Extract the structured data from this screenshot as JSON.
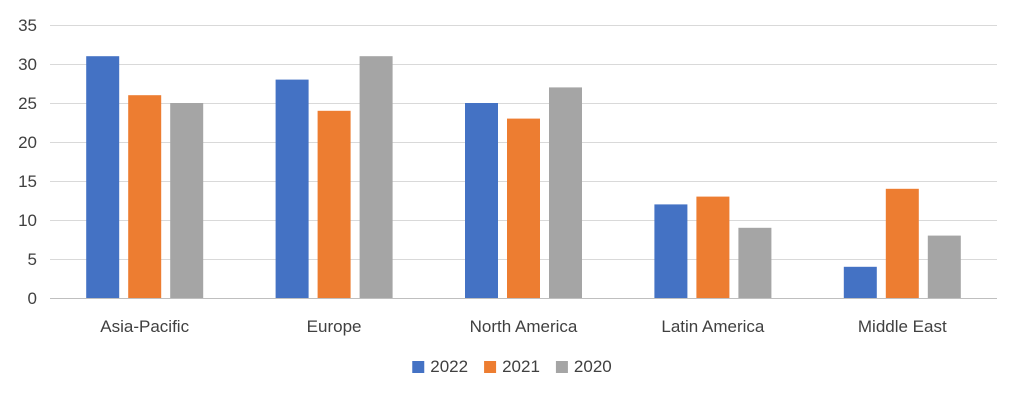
{
  "chart_data": {
    "type": "bar",
    "categories": [
      "Asia-Pacific",
      "Europe",
      "North America",
      "Latin America",
      "Middle East"
    ],
    "series": [
      {
        "name": "2022",
        "color": "#4472C4",
        "values": [
          31,
          28,
          25,
          12,
          4
        ]
      },
      {
        "name": "2021",
        "color": "#ED7D31",
        "values": [
          26,
          24,
          23,
          13,
          14
        ]
      },
      {
        "name": "2020",
        "color": "#A5A5A5",
        "values": [
          25,
          31,
          27,
          9,
          8
        ]
      }
    ],
    "title": "",
    "xlabel": "",
    "ylabel": "",
    "ylim": [
      0,
      35
    ],
    "yticks": [
      0,
      5,
      10,
      15,
      20,
      25,
      30,
      35
    ],
    "grid": true,
    "legend_position": "bottom"
  }
}
